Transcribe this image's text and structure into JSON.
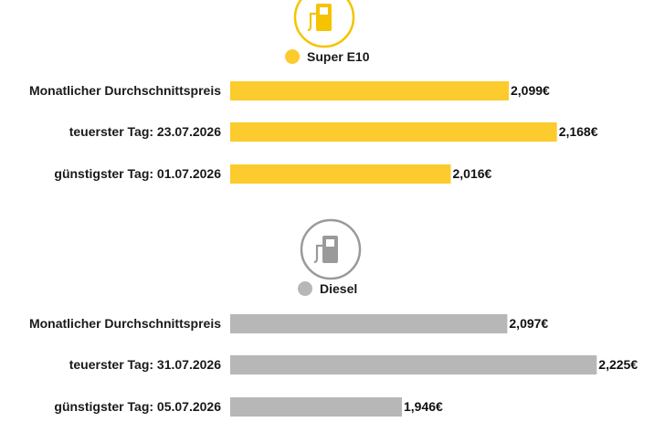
{
  "colors": {
    "super": "#fccb2d",
    "diesel": "#b7b7b7",
    "super_icon": "#f5c300",
    "diesel_icon": "#9a9a9a"
  },
  "chart_data": [
    {
      "type": "bar",
      "orientation": "horizontal",
      "icon": "fuel-pump-icon",
      "legend": "Super E10",
      "categories": [
        "Monatlicher Durchschnittspreis",
        "teuerster Tag: 23.07.2026",
        "günstigster Tag: 01.07.2026"
      ],
      "values": [
        2.099,
        2.168,
        2.016
      ],
      "value_labels": [
        "2,099€",
        "2,168€",
        "2,016€"
      ],
      "color": "#fccb2d",
      "xlim": [
        1.7,
        2.26
      ],
      "grid": false
    },
    {
      "type": "bar",
      "orientation": "horizontal",
      "icon": "fuel-pump-icon",
      "legend": "Diesel",
      "categories": [
        "Monatlicher Durchschnittspreis",
        "teuerster Tag: 31.07.2026",
        "günstigster Tag: 05.07.2026"
      ],
      "values": [
        2.097,
        2.225,
        1.946
      ],
      "value_labels": [
        "2,097€",
        "2,225€",
        "1,946€"
      ],
      "color": "#b7b7b7",
      "xlim": [
        1.7,
        2.26
      ],
      "grid": false
    }
  ]
}
